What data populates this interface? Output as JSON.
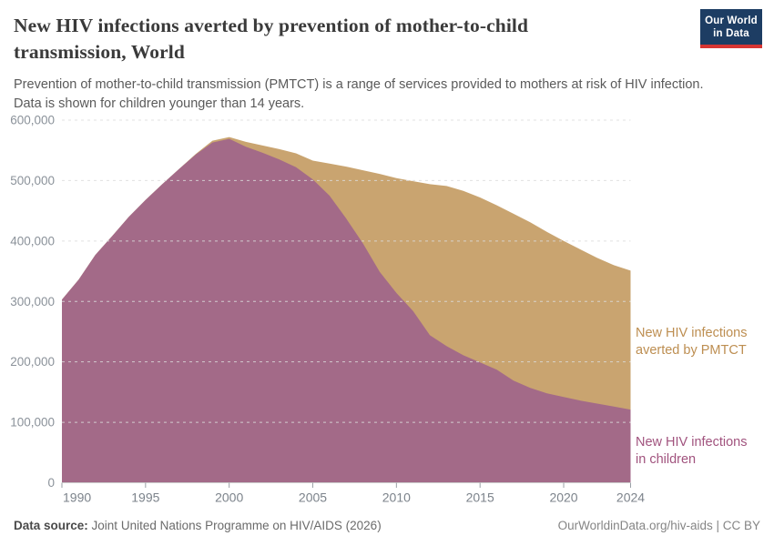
{
  "header": {
    "title_lines": [
      "New HIV infections averted by prevention of mother-to-child",
      "transmission, World"
    ],
    "subtitle_lines": [
      "Prevention of mother-to-child transmission (PMTCT) is a range of services provided to mothers at risk of HIV infection.",
      "Data is shown for children younger than 14 years."
    ],
    "logo": {
      "line1": "Our World",
      "line2": "in Data",
      "bg_color": "#1d3d63",
      "accent_color": "#d73532",
      "text_color": "#ffffff"
    }
  },
  "chart_data": {
    "type": "area",
    "stacked": true,
    "title": "New HIV infections averted by prevention of mother-to-child transmission, World",
    "x": [
      1990,
      1991,
      1992,
      1993,
      1994,
      1995,
      1996,
      1997,
      1998,
      1999,
      2000,
      2001,
      2002,
      2003,
      2004,
      2005,
      2006,
      2007,
      2008,
      2009,
      2010,
      2011,
      2012,
      2013,
      2014,
      2015,
      2016,
      2017,
      2018,
      2019,
      2020,
      2021,
      2022,
      2023,
      2024
    ],
    "series": [
      {
        "name": "New HIV infections in children",
        "annotation_lines": [
          "New HIV infections",
          "in children"
        ],
        "color": "#a36a88",
        "annotation_color": "#a1537e",
        "stack_order": "bottom",
        "values": [
          303000,
          336000,
          377000,
          408000,
          440000,
          468000,
          494000,
          519000,
          543000,
          563000,
          569000,
          556000,
          546000,
          535000,
          522000,
          502000,
          475000,
          437000,
          396000,
          349000,
          314000,
          284000,
          244000,
          226000,
          211000,
          199000,
          187000,
          169000,
          157000,
          148000,
          142000,
          136000,
          131000,
          126000,
          121000
        ]
      },
      {
        "name": "New HIV infections averted by PMTCT",
        "annotation_lines": [
          "New HIV infections",
          "averted by PMTCT"
        ],
        "color": "#c9a470",
        "annotation_color": "#bd8e51",
        "stack_order": "top",
        "values": [
          0,
          0,
          0,
          0,
          0,
          0,
          0,
          0,
          1000,
          3000,
          3000,
          8000,
          12000,
          17000,
          23000,
          31000,
          53000,
          86000,
          121000,
          162000,
          190000,
          215000,
          250000,
          265000,
          272000,
          273000,
          272000,
          276000,
          274000,
          267000,
          258000,
          250000,
          241000,
          234000,
          230000
        ]
      }
    ],
    "xlim": [
      1990,
      2024
    ],
    "ylim": [
      0,
      600000
    ],
    "x_ticks": [
      1990,
      1995,
      2000,
      2005,
      2010,
      2015,
      2020,
      2024
    ],
    "y_ticks": [
      0,
      100000,
      200000,
      300000,
      400000,
      500000,
      600000
    ],
    "y_tick_labels": [
      "0",
      "100,000",
      "200,000",
      "300,000",
      "400,000",
      "500,000",
      "600,000"
    ],
    "grid": true,
    "legend_position": "right-annotations"
  },
  "axis_style": {
    "grid_color": "#dcdcdc",
    "baseline_color": "#cccccc",
    "tick_color": "#9aa0a6",
    "y_label_color": "#8b929a",
    "x_label_color": "#7c838b"
  },
  "footer": {
    "source_label": "Data source:",
    "source_value": "Joint United Nations Programme on HIV/AIDS (2026)",
    "credit": "OurWorldinData.org/hiv-aids | CC BY"
  }
}
